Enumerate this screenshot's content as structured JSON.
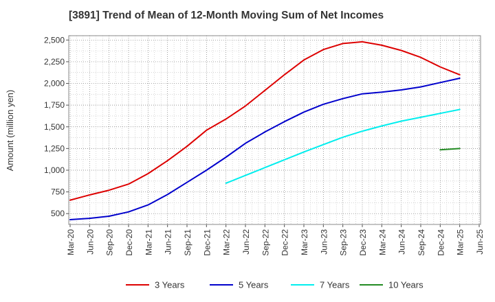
{
  "chart_data": {
    "type": "line",
    "title": "[3891]  Trend of Mean of 12-Month Moving Sum of Net Incomes",
    "xlabel": "",
    "ylabel": "Amount (million yen)",
    "ylim": [
      375,
      2550
    ],
    "yticks": [
      500,
      750,
      1000,
      1250,
      1500,
      1750,
      2000,
      2250,
      2500
    ],
    "ytick_labels": [
      "500",
      "750",
      "1,000",
      "1,250",
      "1,500",
      "1,750",
      "2,000",
      "2,250",
      "2,500"
    ],
    "xtick_labels": [
      "Mar-20",
      "Jun-20",
      "Sep-20",
      "Dec-20",
      "Mar-21",
      "Jun-21",
      "Sep-21",
      "Dec-21",
      "Mar-22",
      "Jun-22",
      "Sep-22",
      "Dec-22",
      "Mar-23",
      "Jun-23",
      "Sep-23",
      "Dec-23",
      "Mar-24",
      "Jun-24",
      "Sep-24",
      "Dec-24",
      "Mar-25",
      "Jun-25"
    ],
    "grid": true,
    "legend_position": "bottom",
    "series": [
      {
        "name": "3 Years",
        "color": "#dd0000",
        "start": "Mar-20",
        "values": [
          655,
          715,
          770,
          840,
          960,
          1110,
          1275,
          1460,
          1590,
          1740,
          1920,
          2100,
          2270,
          2390,
          2460,
          2480,
          2440,
          2380,
          2300,
          2190,
          2100
        ]
      },
      {
        "name": "5 Years",
        "color": "#0000cc",
        "start": "Mar-20",
        "values": [
          430,
          445,
          470,
          520,
          600,
          720,
          860,
          1000,
          1150,
          1310,
          1440,
          1560,
          1670,
          1760,
          1825,
          1880,
          1900,
          1925,
          1960,
          2010,
          2060
        ]
      },
      {
        "name": "7 Years",
        "color": "#00eeee",
        "start": "Mar-22",
        "values": [
          850,
          940,
          1030,
          1120,
          1210,
          1295,
          1380,
          1450,
          1510,
          1565,
          1610,
          1655,
          1700
        ]
      },
      {
        "name": "10 Years",
        "color": "#228b22",
        "start": "Dec-24",
        "values": [
          1235,
          1250
        ]
      }
    ]
  }
}
